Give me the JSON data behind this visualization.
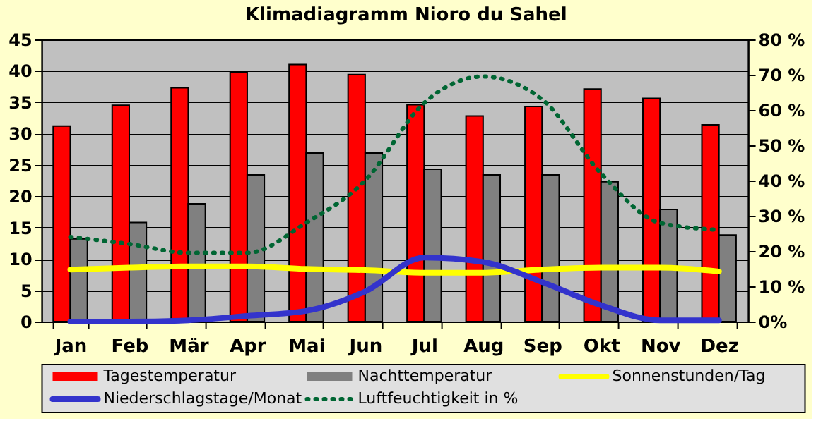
{
  "chart_data": {
    "type": "bar",
    "title": "Klimadiagramm Nioro du Sahel",
    "categories": [
      "Jan",
      "Feb",
      "Mär",
      "Apr",
      "Mai",
      "Jun",
      "Jul",
      "Aug",
      "Sep",
      "Okt",
      "Nov",
      "Dez"
    ],
    "series": [
      {
        "name": "Tagestemperatur",
        "color": "#ff0000",
        "values": [
          31.2,
          34.5,
          37.3,
          39.8,
          41.0,
          39.4,
          34.6,
          32.8,
          34.3,
          37.1,
          35.6,
          31.4
        ]
      },
      {
        "name": "Nachttemperatur",
        "color": "#808080",
        "values": [
          13.2,
          15.8,
          18.8,
          23.4,
          26.9,
          26.9,
          24.3,
          23.4,
          23.4,
          22.3,
          17.9,
          13.8
        ]
      },
      {
        "name": "Sonnenstunden/Tag",
        "type": "line",
        "color": "#ffff00",
        "values": [
          8.3,
          8.6,
          8.8,
          8.8,
          8.4,
          8.2,
          7.8,
          7.8,
          8.3,
          8.6,
          8.6,
          8.0
        ]
      },
      {
        "name": "Niederschlagstage/Monat",
        "type": "line",
        "color": "#3333cc",
        "values": [
          0,
          0,
          0.2,
          0.9,
          1.7,
          4.8,
          10.2,
          9.5,
          6.3,
          2.6,
          0.2,
          0.2
        ]
      },
      {
        "name": "Luftfeuchtigkeit in %",
        "type": "line",
        "axis": "y2",
        "line_style": "dotted",
        "color": "#006633",
        "values": [
          24,
          22,
          19.5,
          19.5,
          28,
          40,
          62,
          69.5,
          63,
          42,
          28,
          26
        ]
      }
    ],
    "ylim": [
      0,
      45
    ],
    "yticks": [
      0,
      5,
      10,
      15,
      20,
      25,
      30,
      35,
      40,
      45
    ],
    "y2lim": [
      0,
      80
    ],
    "y2ticks": [
      {
        "value": 0,
        "label": "0%"
      },
      {
        "value": 10,
        "label": "10 %"
      },
      {
        "value": 20,
        "label": "20 %"
      },
      {
        "value": 30,
        "label": "30 %"
      },
      {
        "value": 40,
        "label": "40 %"
      },
      {
        "value": 50,
        "label": "50 %"
      },
      {
        "value": 60,
        "label": "60 %"
      },
      {
        "value": 70,
        "label": "70 %"
      },
      {
        "value": 80,
        "label": "80 %"
      }
    ],
    "grid": "y",
    "legend": "bottom",
    "marker": "none"
  }
}
